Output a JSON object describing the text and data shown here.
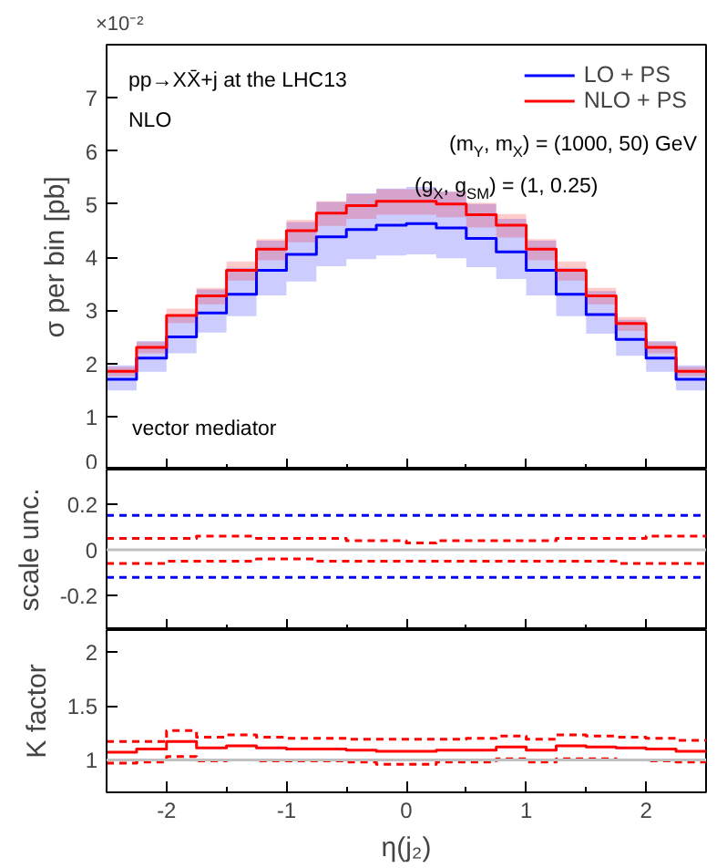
{
  "chart_data": [
    {
      "type": "step",
      "ylabel": "σ per bin [pb]",
      "xlim": [
        -2.5,
        2.5
      ],
      "xticks": [
        -2,
        -1,
        0,
        1,
        2
      ],
      "ylim": [
        0,
        8
      ],
      "yticks": [
        0,
        1,
        2,
        3,
        4,
        5,
        6,
        7
      ],
      "tick_labels": "y",
      "grid": false,
      "legend": "top right",
      "annotations": [
        "×10⁻²",
        "pp→XX̄+j at the LHC13",
        "NLO",
        "(m$_{Y}$, m$_{X}$) = (1000, 50) GeV",
        "(g$_{X}$, g$_{SM}$) = (1, 0.25)",
        "vector mediator"
      ],
      "x": [
        -2.5,
        -2.25,
        -2.0,
        -1.75,
        -1.5,
        -1.25,
        -1.0,
        -0.75,
        -0.5,
        -0.25,
        0.0,
        0.25,
        0.5,
        0.75,
        1.0,
        1.25,
        1.5,
        1.75,
        2.0,
        2.25,
        2.5
      ],
      "series": [
        {
          "name": "LO + PS",
          "color": "#0000ff",
          "values": [
            1.7,
            2.1,
            2.5,
            2.95,
            3.3,
            3.75,
            4.05,
            4.38,
            4.52,
            4.6,
            4.63,
            4.55,
            4.35,
            4.1,
            3.75,
            3.3,
            2.92,
            2.45,
            2.1,
            1.7,
            1.7
          ],
          "upper": [
            1.96,
            2.42,
            2.88,
            3.39,
            3.8,
            4.31,
            4.66,
            5.04,
            5.2,
            5.29,
            5.32,
            5.23,
            5.0,
            4.72,
            4.31,
            3.8,
            3.36,
            2.82,
            2.42,
            1.96,
            1.96
          ],
          "lower": [
            1.49,
            1.84,
            2.19,
            2.58,
            2.89,
            3.28,
            3.54,
            3.83,
            3.96,
            4.03,
            4.05,
            3.98,
            3.81,
            3.59,
            3.28,
            2.89,
            2.56,
            2.14,
            1.84,
            1.49,
            1.49
          ]
        },
        {
          "name": "NLO + PS",
          "color": "#ff0000",
          "values": [
            1.85,
            2.3,
            2.9,
            3.27,
            3.75,
            4.15,
            4.5,
            4.83,
            4.97,
            5.05,
            5.05,
            5.0,
            4.8,
            4.6,
            4.15,
            3.75,
            3.27,
            2.75,
            2.3,
            1.85,
            1.85
          ],
          "upper": [
            1.93,
            2.4,
            3.03,
            3.42,
            3.92,
            4.34,
            4.7,
            5.05,
            5.19,
            5.28,
            5.28,
            5.23,
            5.02,
            4.81,
            4.34,
            3.92,
            3.42,
            2.87,
            2.4,
            1.93,
            1.93
          ],
          "lower": [
            1.76,
            2.19,
            2.76,
            3.11,
            3.56,
            3.94,
            4.28,
            4.59,
            4.72,
            4.8,
            4.8,
            4.75,
            4.56,
            4.37,
            3.94,
            3.56,
            3.11,
            2.61,
            2.19,
            1.76,
            1.76
          ]
        }
      ]
    },
    {
      "type": "step",
      "ylabel": "scale unc.",
      "xlim": [
        -2.5,
        2.5
      ],
      "xticks": [
        -2,
        -1,
        0,
        1,
        2
      ],
      "ylim": [
        -0.35,
        0.35
      ],
      "yticks": [
        {
          "value": -0.2,
          "label": "-0.2"
        },
        0,
        0.2
      ],
      "tick_labels": "y",
      "grid": false,
      "line_style": "dashed",
      "ref_lines": [
        {
          "axis": "y",
          "value": 0,
          "color": "#c0c0c0"
        }
      ],
      "x": [
        -2.5,
        -2.25,
        -2.0,
        -1.75,
        -1.5,
        -1.25,
        -1.0,
        -0.75,
        -0.5,
        -0.25,
        0.0,
        0.25,
        0.5,
        0.75,
        1.0,
        1.25,
        1.5,
        1.75,
        2.0,
        2.25,
        2.5
      ],
      "series": [
        {
          "color": "#0000ff",
          "values": [
            0.15,
            0.15,
            0.15,
            0.15,
            0.15,
            0.15,
            0.15,
            0.15,
            0.15,
            0.15,
            0.15,
            0.15,
            0.15,
            0.15,
            0.15,
            0.15,
            0.15,
            0.15,
            0.15,
            0.15,
            0.15
          ]
        },
        {
          "color": "#0000ff",
          "values": [
            -0.12,
            -0.12,
            -0.12,
            -0.12,
            -0.12,
            -0.12,
            -0.12,
            -0.12,
            -0.12,
            -0.12,
            -0.12,
            -0.12,
            -0.12,
            -0.12,
            -0.12,
            -0.12,
            -0.12,
            -0.12,
            -0.12,
            -0.12,
            -0.12
          ]
        },
        {
          "color": "#ff0000",
          "values": [
            0.05,
            0.05,
            0.05,
            0.06,
            0.06,
            0.05,
            0.05,
            0.05,
            0.04,
            0.04,
            0.03,
            0.04,
            0.04,
            0.04,
            0.04,
            0.05,
            0.05,
            0.05,
            0.06,
            0.06,
            0.06
          ]
        },
        {
          "color": "#ff0000",
          "values": [
            -0.06,
            -0.06,
            -0.05,
            -0.05,
            -0.05,
            -0.04,
            -0.04,
            -0.05,
            -0.05,
            -0.05,
            -0.05,
            -0.05,
            -0.05,
            -0.05,
            -0.05,
            -0.05,
            -0.05,
            -0.06,
            -0.06,
            -0.06,
            -0.06
          ]
        }
      ]
    },
    {
      "type": "step",
      "ylabel": "K factor",
      "xlabel": "η(j₂)",
      "xlim": [
        -2.5,
        2.5
      ],
      "xticks": [
        {
          "value": -2,
          "label": "-2"
        },
        {
          "value": -1,
          "label": "-1"
        },
        0,
        1,
        2
      ],
      "ylim": [
        0.7,
        2.2
      ],
      "yticks": [
        1,
        1.5,
        2
      ],
      "grid": false,
      "ref_lines": [
        {
          "axis": "y",
          "value": 1,
          "color": "#c0c0c0"
        }
      ],
      "x": [
        -2.5,
        -2.25,
        -2.0,
        -1.75,
        -1.5,
        -1.25,
        -1.0,
        -0.75,
        -0.5,
        -0.25,
        0.0,
        0.25,
        0.5,
        0.75,
        1.0,
        1.25,
        1.5,
        1.75,
        2.0,
        2.25,
        2.5
      ],
      "series": [
        {
          "color": "#ff0000",
          "line_style": "solid",
          "values": [
            1.07,
            1.1,
            1.17,
            1.11,
            1.13,
            1.11,
            1.1,
            1.1,
            1.09,
            1.08,
            1.08,
            1.09,
            1.09,
            1.12,
            1.09,
            1.13,
            1.12,
            1.11,
            1.1,
            1.08,
            1.08
          ]
        },
        {
          "color": "#ff0000",
          "line_style": "dashed",
          "values": [
            1.17,
            1.17,
            1.27,
            1.21,
            1.23,
            1.21,
            1.2,
            1.2,
            1.19,
            1.19,
            1.19,
            1.19,
            1.2,
            1.22,
            1.19,
            1.23,
            1.22,
            1.21,
            1.2,
            1.18,
            1.18
          ]
        },
        {
          "color": "#ff0000",
          "line_style": "dashed",
          "values": [
            0.97,
            0.98,
            1.03,
            0.99,
            1.0,
            0.99,
            0.99,
            0.99,
            0.98,
            0.96,
            0.96,
            0.98,
            0.98,
            1.01,
            0.98,
            1.01,
            1.01,
            1.0,
            0.99,
            0.98,
            0.98
          ]
        }
      ]
    }
  ]
}
